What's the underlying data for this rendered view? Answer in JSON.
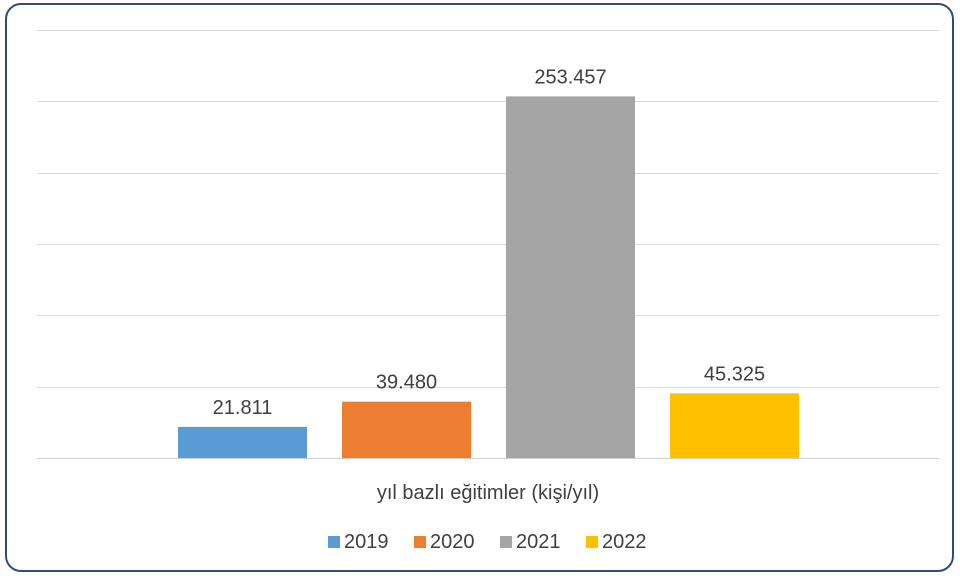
{
  "chart_data": {
    "type": "bar",
    "xlabel": "yıl bazlı eğitimler (kişi/yıl)",
    "ylim": [
      0,
      300000
    ],
    "grid": true,
    "legend_position": "bottom",
    "series": [
      {
        "name": "2019",
        "value": 21811,
        "label": "21.811",
        "color": "#5b9bd5"
      },
      {
        "name": "2020",
        "value": 39480,
        "label": "39.480",
        "color": "#ed7d31"
      },
      {
        "name": "2021",
        "value": 253457,
        "label": "253.457",
        "color": "#a5a5a5"
      },
      {
        "name": "2022",
        "value": 45325,
        "label": "45.325",
        "color": "#ffc000"
      }
    ]
  }
}
